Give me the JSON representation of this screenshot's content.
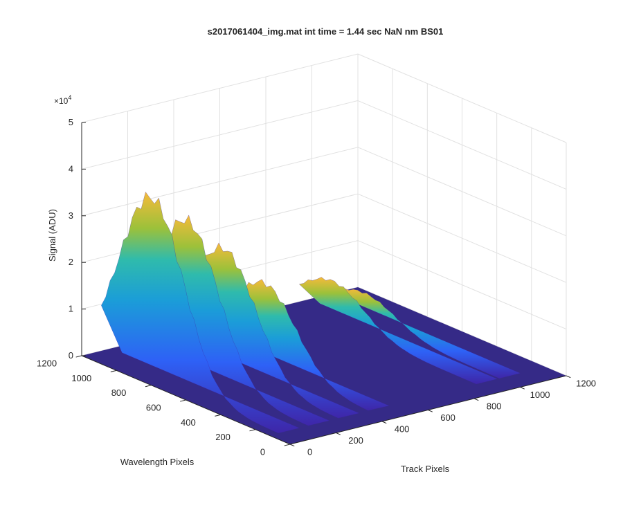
{
  "chart_data": {
    "type": "surface",
    "title": "s2017061404_img.mat int time = 1.44 sec  NaN nm BS01",
    "xlabel": "Track Pixels",
    "ylabel": "Wavelength Pixels",
    "zlabel": "Signal (ADU)",
    "z_multiplier_label": "×10",
    "z_multiplier_exponent": "4",
    "xlim": [
      0,
      1200
    ],
    "ylim": [
      0,
      1200
    ],
    "zlim": [
      0,
      50000
    ],
    "x_ticks": [
      "0",
      "200",
      "400",
      "600",
      "800",
      "1000",
      "1200"
    ],
    "y_ticks": [
      "0",
      "200",
      "400",
      "600",
      "800",
      "1000",
      "1200"
    ],
    "z_ticks": [
      "0",
      "1",
      "2",
      "3",
      "4",
      "5"
    ],
    "grid": true,
    "colormap": [
      "#3e26a8",
      "#2e61f6",
      "#1b9dd8",
      "#2fbbac",
      "#9cc13a",
      "#f6ba3a",
      "#f9fb15"
    ],
    "surface_peaks": [
      {
        "track_center": 40,
        "wavelength_center": 850,
        "peak_signal": 39000
      },
      {
        "track_center": 170,
        "wavelength_center": 820,
        "peak_signal": 33000
      },
      {
        "track_center": 300,
        "wavelength_center": 780,
        "peak_signal": 26000
      },
      {
        "track_center": 430,
        "wavelength_center": 720,
        "peak_signal": 18000
      },
      {
        "track_center": 900,
        "wavelength_center": 950,
        "peak_signal": 9000
      },
      {
        "track_center": 1000,
        "wavelength_center": 900,
        "peak_signal": 6000
      }
    ]
  }
}
